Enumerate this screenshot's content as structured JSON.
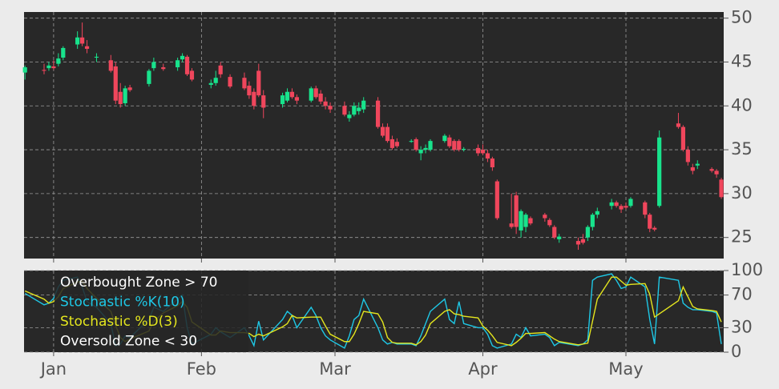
{
  "chart_data": [
    {
      "type": "candlestick",
      "x": [
        -6,
        -2,
        -1,
        0,
        1,
        2,
        5,
        6,
        7,
        9,
        12,
        13,
        14,
        15,
        16,
        20,
        21,
        23,
        26,
        27,
        28,
        29,
        33,
        34,
        35,
        37,
        40,
        41,
        42,
        43,
        44,
        48,
        49,
        50,
        51,
        54,
        55,
        56,
        57,
        58,
        61,
        62,
        63,
        64,
        65,
        68,
        69,
        70,
        71,
        72,
        75,
        76,
        77,
        78,
        79,
        82,
        83,
        84,
        85,
        86,
        89,
        90,
        91,
        92,
        93,
        96,
        97,
        98,
        99,
        100,
        103,
        104,
        105,
        106,
        110,
        111,
        112,
        113,
        114,
        117,
        118,
        119,
        120,
        121,
        124,
        125,
        126,
        127,
        131,
        132,
        133,
        134,
        135,
        138,
        139,
        140
      ],
      "open": [
        43.8,
        44.1,
        44.3,
        44.5,
        44.8,
        45.5,
        47.0,
        47.8,
        46.8,
        45.5,
        45.2,
        44.5,
        41.6,
        40.3,
        42.1,
        42.5,
        44.3,
        44.4,
        44.4,
        45.3,
        45.6,
        44.0,
        42.4,
        42.6,
        44.6,
        43.3,
        43.2,
        42.3,
        41.6,
        44.0,
        41.2,
        40.2,
        40.6,
        41.6,
        41.0,
        40.6,
        42.0,
        41.4,
        40.5,
        40.0,
        40.0,
        38.6,
        39.0,
        39.4,
        39.6,
        40.6,
        37.6,
        37.6,
        36.2,
        35.9,
        35.9,
        36.2,
        34.6,
        35.0,
        35.0,
        36.0,
        36.4,
        36.0,
        36.0,
        35.0,
        35.2,
        35.0,
        34.6,
        34.0,
        31.4,
        26.6,
        29.8,
        25.8,
        26.2,
        27.2,
        27.6,
        27.0,
        26.2,
        24.8,
        24.6,
        24.8,
        25.0,
        26.2,
        27.6,
        28.6,
        29.0,
        28.6,
        28.6,
        28.6,
        29.0,
        27.6,
        26.1,
        28.6,
        38.0,
        37.6,
        35.0,
        33.0,
        33.2,
        32.8,
        32.6,
        31.6
      ],
      "high": [
        44.6,
        44.8,
        45.0,
        45.2,
        46.0,
        46.8,
        48.5,
        49.5,
        47.5,
        46.0,
        45.8,
        45.0,
        42.6,
        42.3,
        42.4,
        44.2,
        45.5,
        44.8,
        45.5,
        46.0,
        45.8,
        44.3,
        43.0,
        44.0,
        45.0,
        43.6,
        43.8,
        42.8,
        42.0,
        44.8,
        41.8,
        41.5,
        42.0,
        42.0,
        41.3,
        42.2,
        42.3,
        41.8,
        41.0,
        40.4,
        40.5,
        39.4,
        40.4,
        40.4,
        41.0,
        41.0,
        38.0,
        38.0,
        36.6,
        36.3,
        36.2,
        36.4,
        35.4,
        35.6,
        36.2,
        36.8,
        36.7,
        36.2,
        36.2,
        35.3,
        35.6,
        35.6,
        35.0,
        34.2,
        31.6,
        30.0,
        30.2,
        28.2,
        27.8,
        27.4,
        27.8,
        27.2,
        26.4,
        25.4,
        25.0,
        25.4,
        26.4,
        27.8,
        28.4,
        29.4,
        29.2,
        28.8,
        29.0,
        29.6,
        29.2,
        27.8,
        26.3,
        37.2,
        39.2,
        37.8,
        35.4,
        33.4,
        33.8,
        33.0,
        32.8,
        31.8
      ],
      "low": [
        43.0,
        43.6,
        44.0,
        44.1,
        44.5,
        45.2,
        46.5,
        46.8,
        46.0,
        45.0,
        43.8,
        40.2,
        39.8,
        40.0,
        41.6,
        42.2,
        44.0,
        44.0,
        44.0,
        45.0,
        43.4,
        42.8,
        42.0,
        42.3,
        43.2,
        42.0,
        41.8,
        40.8,
        39.6,
        41.0,
        38.6,
        39.8,
        40.4,
        40.8,
        40.2,
        40.4,
        40.8,
        40.2,
        39.6,
        39.2,
        38.8,
        38.2,
        38.8,
        39.0,
        39.2,
        37.4,
        36.4,
        35.8,
        35.0,
        35.2,
        35.8,
        34.8,
        33.8,
        34.6,
        34.8,
        35.8,
        35.2,
        34.8,
        34.8,
        34.8,
        34.3,
        34.4,
        33.6,
        32.6,
        27.0,
        26.0,
        25.4,
        25.0,
        25.6,
        26.4,
        26.8,
        26.2,
        24.8,
        24.4,
        23.6,
        24.2,
        24.6,
        25.8,
        27.2,
        28.2,
        28.4,
        27.8,
        28.2,
        28.4,
        27.2,
        25.6,
        25.7,
        28.4,
        37.4,
        34.8,
        33.2,
        32.2,
        32.8,
        32.4,
        31.8,
        29.4
      ],
      "close": [
        44.4,
        44.0,
        44.6,
        44.3,
        45.4,
        46.6,
        47.8,
        47.1,
        46.5,
        45.6,
        44.0,
        40.6,
        40.2,
        42.0,
        41.8,
        44.0,
        45.0,
        44.2,
        45.2,
        45.7,
        43.6,
        43.0,
        42.6,
        43.2,
        43.6,
        42.2,
        42.0,
        41.2,
        40.0,
        41.2,
        39.8,
        41.2,
        41.6,
        41.0,
        40.6,
        42.0,
        41.0,
        40.5,
        40.0,
        39.6,
        39.0,
        39.0,
        40.0,
        39.8,
        40.6,
        37.6,
        36.6,
        36.0,
        35.2,
        35.4,
        36.0,
        35.0,
        35.0,
        35.2,
        36.0,
        36.6,
        35.4,
        35.0,
        35.0,
        35.1,
        34.6,
        34.6,
        34.0,
        33.0,
        27.2,
        26.2,
        26.2,
        28.0,
        27.6,
        26.6,
        27.2,
        26.4,
        25.0,
        25.1,
        24.2,
        24.4,
        26.2,
        27.6,
        28.0,
        29.0,
        28.6,
        28.2,
        28.4,
        29.4,
        27.6,
        26.0,
        25.9,
        36.4,
        37.6,
        35.0,
        33.6,
        32.6,
        33.4,
        32.6,
        32.2,
        29.6
      ],
      "up_color": "#18e38c",
      "down_color": "#f0465c",
      "xlim": [
        -6.2,
        140.5
      ],
      "ylim": [
        22.6,
        50.7
      ],
      "yticks": [
        25,
        30,
        35,
        40,
        45,
        50
      ],
      "grid": true
    },
    {
      "type": "line",
      "annotations": [
        "Overbought Zone > 70",
        "Oversold Zone < 30"
      ],
      "series": [
        {
          "name": "Stochastic %K(10)",
          "color": "#1ec8e6",
          "values": [
            72,
            58,
            60,
            66,
            80,
            88,
            92,
            80,
            62,
            55,
            35,
            8,
            10,
            20,
            18,
            40,
            55,
            50,
            65,
            70,
            30,
            10,
            22,
            30,
            25,
            18,
            30,
            20,
            8,
            38,
            15,
            40,
            50,
            45,
            30,
            55,
            45,
            30,
            20,
            15,
            5,
            20,
            40,
            45,
            65,
            30,
            15,
            10,
            12,
            10,
            10,
            8,
            20,
            35,
            50,
            65,
            40,
            35,
            62,
            35,
            30,
            30,
            22,
            8,
            5,
            10,
            22,
            18,
            30,
            20,
            22,
            18,
            8,
            12,
            8,
            10,
            15,
            88,
            92,
            96,
            88,
            78,
            80,
            92,
            80,
            40,
            10,
            92,
            88,
            60,
            55,
            52,
            52,
            50,
            48,
            10
          ]
        },
        {
          "name": "Stochastic %D(3)",
          "color": "#e4e61e",
          "values": [
            75,
            65,
            60,
            62,
            68,
            78,
            86,
            87,
            78,
            66,
            50,
            33,
            18,
            13,
            16,
            26,
            38,
            48,
            57,
            62,
            55,
            37,
            21,
            21,
            26,
            24,
            24,
            23,
            19,
            22,
            20,
            31,
            35,
            45,
            42,
            43,
            43,
            43,
            32,
            22,
            13,
            13,
            22,
            35,
            50,
            47,
            37,
            18,
            12,
            11,
            11,
            9,
            13,
            21,
            35,
            50,
            52,
            47,
            46,
            44,
            42,
            32,
            27,
            20,
            12,
            8,
            12,
            17,
            23,
            23,
            24,
            20,
            16,
            13,
            9,
            10,
            11,
            38,
            65,
            92,
            92,
            87,
            82,
            83,
            84,
            71,
            43,
            47,
            63,
            80,
            68,
            56,
            53,
            51,
            50,
            37
          ]
        }
      ],
      "xlim": [
        -6.2,
        140.5
      ],
      "xticks": [
        {
          "value": 0,
          "label": "Jan"
        },
        {
          "value": 31,
          "label": "Feb"
        },
        {
          "value": 59,
          "label": "Mar"
        },
        {
          "value": 90,
          "label": "Apr"
        },
        {
          "value": 120,
          "label": "May"
        }
      ],
      "ylim": [
        0,
        100
      ],
      "yticks": [
        0,
        30,
        70,
        100
      ],
      "grid": true
    }
  ]
}
